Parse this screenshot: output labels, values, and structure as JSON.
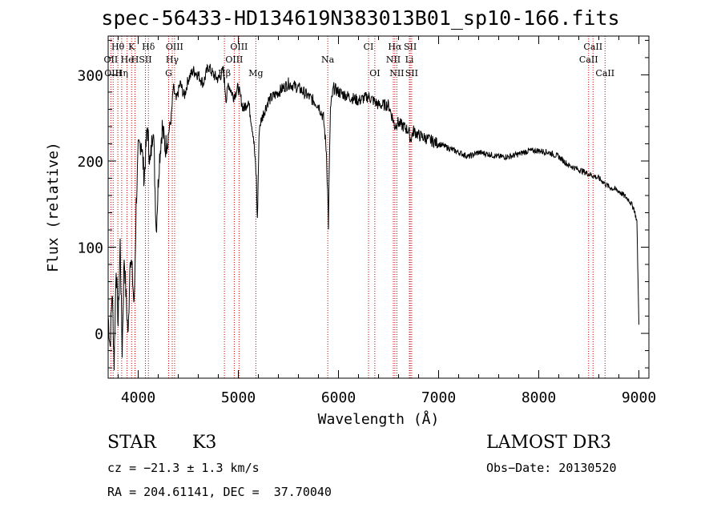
{
  "chart_data": {
    "type": "line",
    "title": "spec-56433-HD134619N383013B01_sp10-166.fits",
    "xlabel": "Wavelength (Å)",
    "ylabel": "Flux (relative)",
    "xlim": [
      3700,
      9100
    ],
    "ylim": [
      -52,
      345
    ],
    "xticks": [
      4000,
      5000,
      6000,
      7000,
      8000,
      9000
    ],
    "yticks": [
      0,
      100,
      200,
      300
    ],
    "grid": false,
    "series": [
      {
        "x": [
          3700,
          3720,
          3740,
          3760,
          3780,
          3800,
          3820,
          3840,
          3860,
          3880,
          3900,
          3920,
          3940,
          3960,
          3980,
          4000,
          4030,
          4060,
          4090,
          4120,
          4150,
          4180,
          4210,
          4240,
          4270,
          4300,
          4330,
          4350,
          4380,
          4420,
          4460,
          4500,
          4550,
          4600,
          4650,
          4700,
          4750,
          4800,
          4850,
          4880,
          4900,
          4950,
          5000,
          5050,
          5100,
          5150,
          5180,
          5190,
          5200,
          5210,
          5250,
          5300,
          5400,
          5500,
          5600,
          5700,
          5800,
          5850,
          5880,
          5895,
          5900,
          5905,
          5920,
          5950,
          6000,
          6100,
          6200,
          6300,
          6400,
          6500,
          6540,
          6563,
          6590,
          6650,
          6700,
          6720,
          6750,
          6800,
          6900,
          7000,
          7100,
          7200,
          7300,
          7400,
          7500,
          7600,
          7700,
          7800,
          7900,
          8000,
          8100,
          8200,
          8300,
          8400,
          8500,
          8600,
          8700,
          8800,
          8900,
          8950,
          8980,
          9000
        ],
        "y": [
          20,
          -15,
          50,
          -35,
          80,
          10,
          105,
          -20,
          90,
          40,
          -5,
          95,
          70,
          30,
          150,
          210,
          225,
          180,
          240,
          195,
          245,
          120,
          200,
          240,
          215,
          230,
          250,
          285,
          270,
          290,
          275,
          295,
          305,
          300,
          290,
          310,
          300,
          295,
          305,
          270,
          290,
          275,
          285,
          260,
          270,
          230,
          180,
          130,
          190,
          240,
          255,
          270,
          280,
          290,
          285,
          275,
          265,
          250,
          210,
          150,
          125,
          170,
          260,
          285,
          280,
          275,
          270,
          275,
          265,
          265,
          250,
          240,
          245,
          240,
          235,
          225,
          235,
          230,
          225,
          220,
          215,
          210,
          205,
          210,
          208,
          205,
          205,
          208,
          212,
          212,
          210,
          205,
          195,
          190,
          185,
          180,
          170,
          165,
          155,
          145,
          130,
          10
        ]
      }
    ],
    "annotations": [
      {
        "label": "Hθ",
        "x": 3797,
        "row": 1
      },
      {
        "label": "K",
        "x": 3934,
        "row": 1
      },
      {
        "label": "Hδ",
        "x": 4102,
        "row": 1
      },
      {
        "label": "OIII",
        "x": 4363,
        "row": 1
      },
      {
        "label": "OIII",
        "x": 5007,
        "row": 1
      },
      {
        "label": "CI",
        "x": 6300,
        "row": 1
      },
      {
        "label": "Hα",
        "x": 6563,
        "row": 1
      },
      {
        "label": "SII",
        "x": 6717,
        "row": 1
      },
      {
        "label": "CaII",
        "x": 8542,
        "row": 1
      },
      {
        "label": "OII",
        "x": 3727,
        "row": 2
      },
      {
        "label": "He",
        "x": 3889,
        "row": 2
      },
      {
        "label": "H",
        "x": 3968,
        "row": 2
      },
      {
        "label": "SII",
        "x": 4072,
        "row": 2
      },
      {
        "label": "Hγ",
        "x": 4340,
        "row": 2
      },
      {
        "label": "OIII",
        "x": 4959,
        "row": 2
      },
      {
        "label": "Na",
        "x": 5893,
        "row": 2
      },
      {
        "label": "NII",
        "x": 6548,
        "row": 2
      },
      {
        "label": "Li",
        "x": 6708,
        "row": 2
      },
      {
        "label": "CaII",
        "x": 8498,
        "row": 2
      },
      {
        "label": "OIII",
        "x": 3750,
        "row": 3
      },
      {
        "label": "Hη",
        "x": 3835,
        "row": 3
      },
      {
        "label": "G",
        "x": 4304,
        "row": 3
      },
      {
        "label": "Hβ",
        "x": 4861,
        "row": 3
      },
      {
        "label": "Mg",
        "x": 5175,
        "row": 3
      },
      {
        "label": "OI",
        "x": 6363,
        "row": 3
      },
      {
        "label": "NII",
        "x": 6583,
        "row": 3
      },
      {
        "label": "SII",
        "x": 6731,
        "row": 3
      },
      {
        "label": "CaII",
        "x": 8662,
        "row": 3
      }
    ],
    "line_color": "#000000",
    "marker_color": "#cc0000"
  },
  "info": {
    "object_type": "STAR",
    "subclass": "K3",
    "survey": "LAMOST DR3",
    "redshift": "cz = −21.3 ± 1.3 km/s",
    "obs_date": "Obs−Date: 20130520",
    "coords": "RA = 204.61141, DEC =  37.70040"
  }
}
